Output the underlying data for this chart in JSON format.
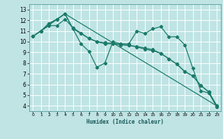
{
  "xlabel": "Humidex (Indice chaleur)",
  "background_color": "#c0e4e4",
  "grid_color": "#ffffff",
  "line_color": "#1a7a6a",
  "xlim": [
    -0.5,
    23.5
  ],
  "ylim": [
    3.5,
    13.5
  ],
  "xticks": [
    0,
    1,
    2,
    3,
    4,
    5,
    6,
    7,
    8,
    9,
    10,
    11,
    12,
    13,
    14,
    15,
    16,
    17,
    18,
    19,
    20,
    21,
    22,
    23
  ],
  "yticks": [
    4,
    5,
    6,
    7,
    8,
    9,
    10,
    11,
    12,
    13
  ],
  "series": [
    {
      "x": [
        0,
        1,
        2,
        3,
        4,
        5,
        6,
        7,
        8,
        9,
        10,
        11,
        12,
        13,
        14,
        15,
        16,
        17,
        18,
        19,
        20,
        21,
        22,
        23
      ],
      "y": [
        10.5,
        11.0,
        11.7,
        12.1,
        12.6,
        11.2,
        9.8,
        9.1,
        7.6,
        8.0,
        10.0,
        9.8,
        9.8,
        11.0,
        10.75,
        11.2,
        11.4,
        10.45,
        10.45,
        9.7,
        7.5,
        5.4,
        5.2,
        3.9
      ],
      "markers": true
    },
    {
      "x": [
        0,
        1,
        2,
        3,
        4,
        5,
        6,
        7,
        8,
        9,
        10,
        11,
        12,
        13,
        14,
        15,
        16,
        17,
        18,
        19,
        20,
        21,
        22,
        23
      ],
      "y": [
        10.5,
        11.0,
        11.7,
        12.1,
        12.6,
        11.2,
        10.75,
        10.3,
        10.0,
        9.8,
        9.8,
        9.7,
        9.65,
        9.5,
        9.3,
        9.15,
        8.9,
        8.4,
        7.9,
        7.2,
        6.8,
        5.9,
        5.3,
        4.0
      ],
      "markers": true
    },
    {
      "x": [
        0,
        1,
        2,
        3,
        4,
        5,
        6,
        7,
        8,
        9,
        10,
        11,
        12,
        13,
        14,
        15,
        16,
        17,
        18,
        19,
        20,
        21,
        22,
        23
      ],
      "y": [
        10.5,
        11.0,
        11.5,
        11.5,
        12.1,
        11.3,
        10.8,
        10.3,
        10.0,
        9.9,
        9.85,
        9.75,
        9.65,
        9.55,
        9.4,
        9.25,
        8.9,
        8.4,
        7.9,
        7.2,
        6.8,
        5.9,
        5.3,
        4.0
      ],
      "markers": true
    },
    {
      "x": [
        0,
        4,
        23
      ],
      "y": [
        10.5,
        12.6,
        4.0
      ],
      "markers": false
    }
  ]
}
